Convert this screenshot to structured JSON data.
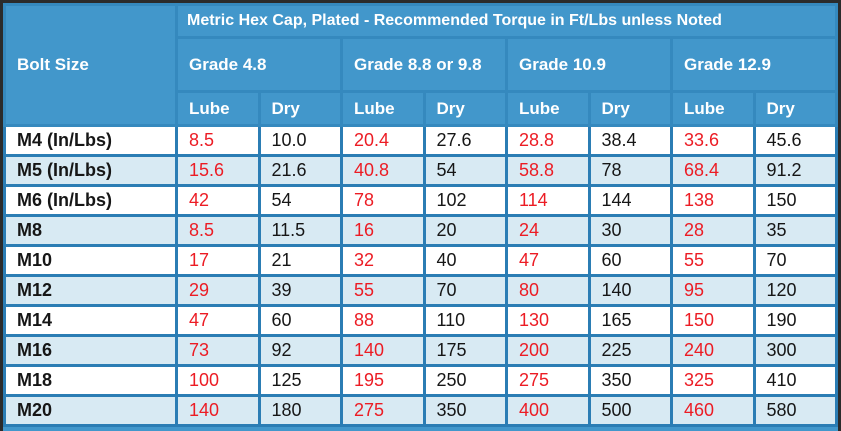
{
  "table": {
    "title": "Metric Hex Cap, Plated - Recommended Torque in Ft/Lbs unless Noted",
    "bolt_size_header": "Bolt Size",
    "grade_headers": [
      "Grade 4.8",
      "Grade 8.8 or 9.8",
      "Grade 10.9",
      "Grade 12.9"
    ],
    "condition_headers": [
      "Lube",
      "Dry"
    ],
    "rows": [
      {
        "bolt": "M4 (In/Lbs)",
        "values": [
          "8.5",
          "10.0",
          "20.4",
          "27.6",
          "28.8",
          "38.4",
          "33.6",
          "45.6"
        ]
      },
      {
        "bolt": "M5 (In/Lbs)",
        "values": [
          "15.6",
          "21.6",
          "40.8",
          "54",
          "58.8",
          "78",
          "68.4",
          "91.2"
        ]
      },
      {
        "bolt": "M6 (In/Lbs)",
        "values": [
          "42",
          "54",
          "78",
          "102",
          "114",
          "144",
          "138",
          "150"
        ]
      },
      {
        "bolt": "M8",
        "values": [
          "8.5",
          "11.5",
          "16",
          "20",
          "24",
          "30",
          "28",
          "35"
        ]
      },
      {
        "bolt": "M10",
        "values": [
          "17",
          "21",
          "32",
          "40",
          "47",
          "60",
          "55",
          "70"
        ]
      },
      {
        "bolt": "M12",
        "values": [
          "29",
          "39",
          "55",
          "70",
          "80",
          "140",
          "95",
          "120"
        ]
      },
      {
        "bolt": "M14",
        "values": [
          "47",
          "60",
          "88",
          "110",
          "130",
          "165",
          "150",
          "190"
        ]
      },
      {
        "bolt": "M16",
        "values": [
          "73",
          "92",
          "140",
          "175",
          "200",
          "225",
          "240",
          "300"
        ]
      },
      {
        "bolt": "M18",
        "values": [
          "100",
          "125",
          "195",
          "250",
          "275",
          "350",
          "325",
          "410"
        ]
      },
      {
        "bolt": "M20",
        "values": [
          "140",
          "180",
          "275",
          "350",
          "400",
          "500",
          "460",
          "580"
        ]
      }
    ]
  },
  "colors": {
    "header_background": "#4297cb",
    "cell_border": "#2b7db4",
    "alternate_row_background": "#d8eaf3",
    "row_background": "#ffffff",
    "lube_value_text": "#ec1c24",
    "dry_value_text": "#161616",
    "header_text": "#ffffff",
    "outer_border": "#2b2b2b"
  }
}
